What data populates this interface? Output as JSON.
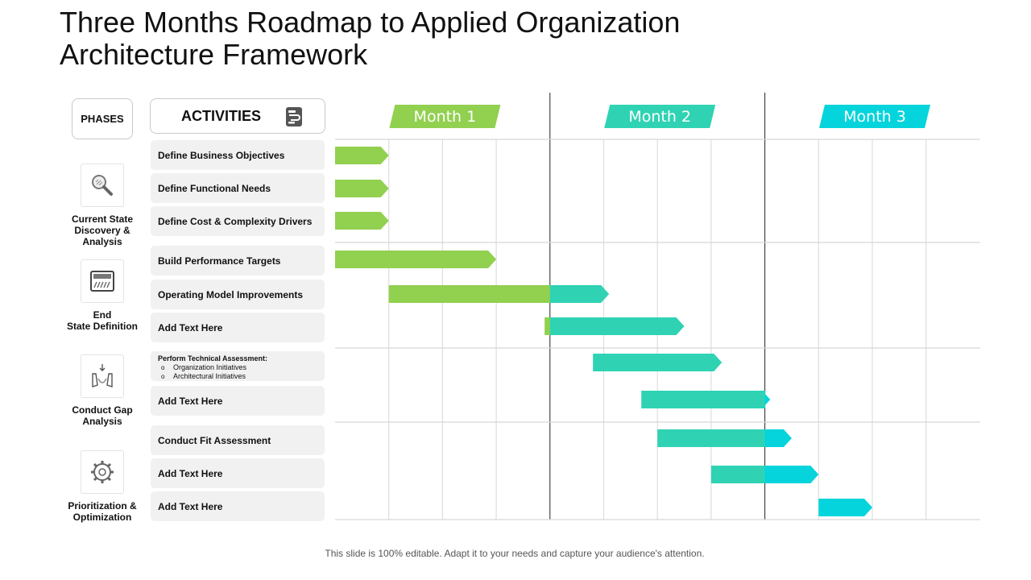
{
  "title": "Three Months Roadmap to Applied Organization Architecture Framework",
  "headers": {
    "phases": "PHASES",
    "activities": "ACTIVITIES"
  },
  "months": [
    {
      "label": "Month 1",
      "color": "#92d050"
    },
    {
      "label": "Month 2",
      "color": "#2fd3b3"
    },
    {
      "label": "Month 3",
      "color": "#05d4dc"
    }
  ],
  "phases": [
    {
      "label": "Current State Discovery & Analysis",
      "lines": [
        "Current State",
        "Discovery &",
        "Analysis"
      ],
      "icon": "magnifier-icon"
    },
    {
      "label": "End State Definition",
      "lines": [
        "End",
        "State Definition"
      ],
      "icon": "calculator-icon"
    },
    {
      "label": "Conduct Gap Analysis",
      "lines": [
        "Conduct Gap",
        "Analysis"
      ],
      "icon": "funnel-icon"
    },
    {
      "label": "Prioritization & Optimization",
      "lines": [
        "Prioritization &",
        "Optimization"
      ],
      "icon": "gear-icon"
    }
  ],
  "activities": [
    {
      "label": "Define Business Objectives"
    },
    {
      "label": "Define Functional Needs"
    },
    {
      "label": "Define Cost & Complexity Drivers"
    },
    {
      "label": "Build Performance Targets"
    },
    {
      "label": "Operating Model Improvements"
    },
    {
      "label": "Add Text Here"
    },
    {
      "label": "Perform Technical Assessment:",
      "bullets": [
        "Organization Initiatives",
        "Architectural Initiatives"
      ]
    },
    {
      "label": "Add Text Here"
    },
    {
      "label": "Conduct Fit Assessment"
    },
    {
      "label": "Add Text Here"
    },
    {
      "label": "Add Text Here"
    }
  ],
  "chart_data": {
    "type": "gantt",
    "unit": "week",
    "columns": [
      "Month 1",
      "Month 2",
      "Month 3"
    ],
    "weeks_per_month": 4,
    "tasks": [
      {
        "activity": "Define Business Objectives",
        "start": 0,
        "end": 1
      },
      {
        "activity": "Define Functional Needs",
        "start": 0,
        "end": 1
      },
      {
        "activity": "Define Cost & Complexity Drivers",
        "start": 0,
        "end": 1
      },
      {
        "activity": "Build Performance Targets",
        "start": 0,
        "end": 3
      },
      {
        "activity": "Operating Model Improvements",
        "start": 1,
        "end": 5.1
      },
      {
        "activity": "Add Text Here",
        "start": 3.9,
        "end": 6.5
      },
      {
        "activity": "Perform Technical Assessment:",
        "start": 4.8,
        "end": 7.2
      },
      {
        "activity": "Add Text Here",
        "start": 5.7,
        "end": 8.1
      },
      {
        "activity": "Conduct Fit Assessment",
        "start": 6.0,
        "end": 8.5
      },
      {
        "activity": "Add Text Here",
        "start": 7.0,
        "end": 9.0
      },
      {
        "activity": "Add Text Here",
        "start": 9.0,
        "end": 10.0
      }
    ]
  },
  "footer": "This slide is 100% editable. Adapt it to your needs and capture your audience's attention."
}
